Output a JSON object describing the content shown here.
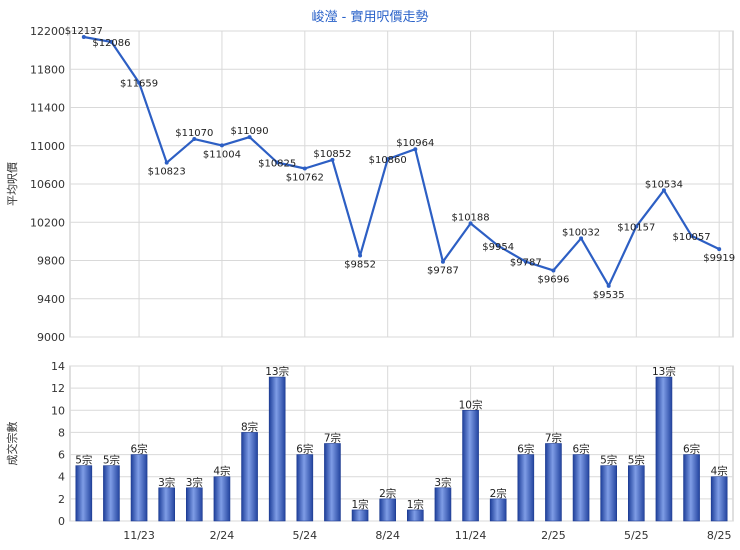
{
  "title": "峻瀅 - 實用呎價走勢",
  "chart_data": [
    {
      "type": "line",
      "ylabel": "平均呎價",
      "ylim": [
        9000,
        12200
      ],
      "yticks": [
        9000,
        9400,
        9800,
        10200,
        10600,
        11000,
        11400,
        11800,
        12200
      ],
      "x_tick_labels": [
        "11/23",
        "2/24",
        "5/24",
        "8/24",
        "11/24",
        "2/25",
        "5/25",
        "8/25"
      ],
      "grid": true,
      "values": [
        12137,
        12086,
        11659,
        10823,
        11070,
        11004,
        11090,
        10825,
        10762,
        10852,
        9852,
        10860,
        10964,
        9787,
        10188,
        9954,
        9787,
        9696,
        10032,
        9535,
        10157,
        10534,
        10057,
        9919
      ],
      "labels": [
        "$12137",
        "$12086",
        "$11659",
        "$10823",
        "$11070",
        "$11004",
        "$11090",
        "$10825",
        "$10762",
        "$10852",
        "$9852",
        "$10860",
        "$10964",
        "$9787",
        "$10188",
        "$9954",
        "$9787",
        "$9696",
        "$10032",
        "$9535",
        "$10157",
        "$10534",
        "$10057",
        "$9919"
      ],
      "line_color": "#2d5fc4"
    },
    {
      "type": "bar",
      "ylabel": "成交宗數",
      "ylim": [
        0,
        14
      ],
      "yticks": [
        0,
        2,
        4,
        6,
        8,
        10,
        12,
        14
      ],
      "x_tick_labels": [
        "11/23",
        "2/24",
        "5/24",
        "8/24",
        "11/24",
        "2/25",
        "5/25",
        "8/25"
      ],
      "grid": true,
      "values": [
        5,
        5,
        6,
        3,
        3,
        4,
        8,
        13,
        6,
        7,
        1,
        2,
        1,
        3,
        10,
        2,
        6,
        7,
        6,
        5,
        5,
        13,
        6,
        4
      ],
      "labels": [
        "5宗",
        "5宗",
        "6宗",
        "3宗",
        "3宗",
        "4宗",
        "8宗",
        "13宗",
        "6宗",
        "7宗",
        "1宗",
        "2宗",
        "1宗",
        "3宗",
        "10宗",
        "2宗",
        "6宗",
        "7宗",
        "6宗",
        "5宗",
        "5宗",
        "13宗",
        "6宗",
        "4宗"
      ],
      "bar_color": "#3a63c8"
    }
  ]
}
